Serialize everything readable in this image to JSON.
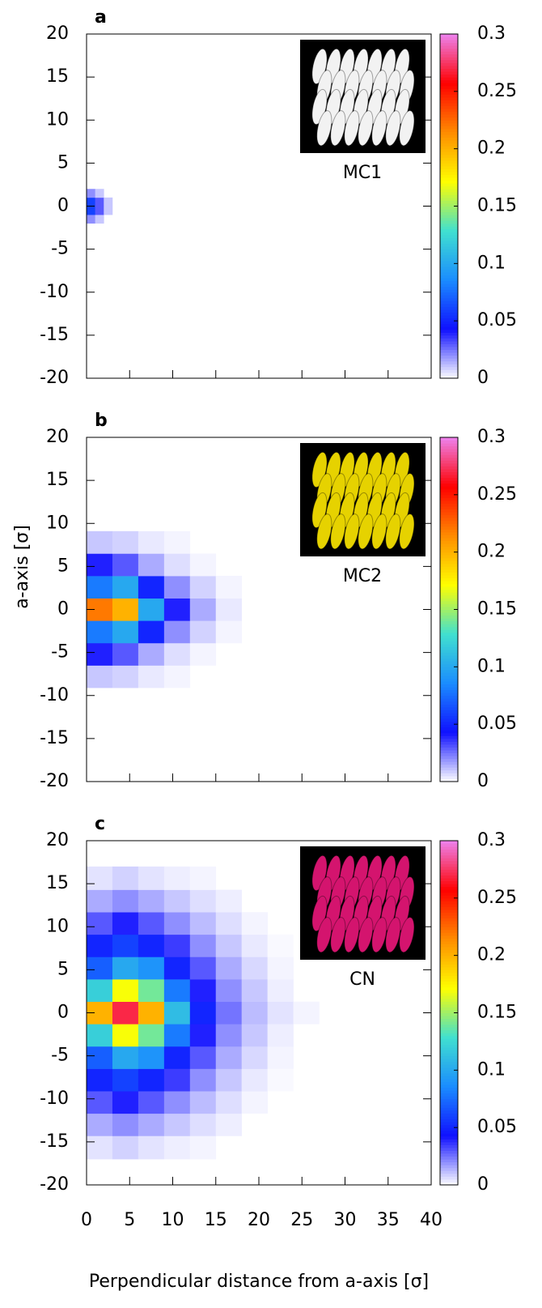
{
  "chart_data": [
    {
      "type": "heatmap",
      "panel": "a",
      "inset_label": "MC1",
      "inset_color": "#f2f2f2",
      "xlim": [
        0,
        40
      ],
      "xticks": [
        0,
        5,
        10,
        15,
        20,
        25,
        30,
        35,
        40
      ],
      "ylim": [
        -20,
        20
      ],
      "yticks": [
        -20,
        -15,
        -10,
        -5,
        0,
        5,
        10,
        15,
        20
      ],
      "x_edges": [
        0,
        1,
        2,
        3
      ],
      "y_edges": [
        -2,
        -1,
        0,
        1,
        2
      ],
      "z": [
        [
          0.02,
          0.01,
          null
        ],
        [
          0.06,
          0.03,
          0.01
        ],
        [
          0.06,
          0.03,
          0.01
        ],
        [
          0.02,
          0.01,
          null
        ]
      ],
      "colorbar": {
        "lim": [
          0,
          0.3
        ],
        "ticks": [
          0,
          0.05,
          0.1,
          0.15,
          0.2,
          0.25,
          0.3
        ],
        "colors": [
          "#ffffff",
          "#1010ff",
          "#1a8cff",
          "#40e0d0",
          "#ffff00",
          "#ff8c00",
          "#ff0000",
          "#ee82ee"
        ]
      }
    },
    {
      "type": "heatmap",
      "panel": "b",
      "inset_label": "MC2",
      "inset_color": "#e6d200",
      "xlim": [
        0,
        40
      ],
      "xticks": [
        0,
        5,
        10,
        15,
        20,
        25,
        30,
        35,
        40
      ],
      "ylim": [
        -20,
        20
      ],
      "yticks": [
        -20,
        -15,
        -10,
        -5,
        0,
        5,
        10,
        15,
        20
      ],
      "x_edges": [
        0,
        3,
        6,
        9,
        12,
        15,
        18
      ],
      "y_edges": [
        -9.1,
        -6.5,
        -3.9,
        -1.3,
        1.3,
        3.9,
        6.5,
        9.1
      ],
      "z": [
        [
          0.01,
          0.008,
          0.004,
          0.002,
          null,
          null
        ],
        [
          0.04,
          0.03,
          0.015,
          0.006,
          0.002,
          null
        ],
        [
          0.08,
          0.1,
          0.05,
          0.02,
          0.008,
          0.002
        ],
        [
          0.22,
          0.2,
          0.1,
          0.04,
          0.015,
          0.004
        ],
        [
          0.08,
          0.1,
          0.05,
          0.02,
          0.008,
          0.002
        ],
        [
          0.04,
          0.03,
          0.015,
          0.006,
          0.002,
          null
        ],
        [
          0.01,
          0.008,
          0.004,
          0.002,
          null,
          null
        ]
      ],
      "colorbar": {
        "lim": [
          0,
          0.3
        ],
        "ticks": [
          0,
          0.05,
          0.1,
          0.15,
          0.2,
          0.25,
          0.3
        ],
        "colors": [
          "#ffffff",
          "#1010ff",
          "#1a8cff",
          "#40e0d0",
          "#ffff00",
          "#ff8c00",
          "#ff0000",
          "#ee82ee"
        ]
      }
    },
    {
      "type": "heatmap",
      "panel": "c",
      "inset_label": "CN",
      "inset_color": "#d4146e",
      "xlim": [
        0,
        40
      ],
      "xticks": [
        0,
        5,
        10,
        15,
        20,
        25,
        30,
        35,
        40
      ],
      "ylim": [
        -20,
        20
      ],
      "yticks": [
        -20,
        -15,
        -10,
        -5,
        0,
        5,
        10,
        15,
        20
      ],
      "x_edges": [
        0,
        3,
        6,
        9,
        12,
        15,
        18,
        21,
        24,
        27
      ],
      "y_edges": [
        -17,
        -14.3,
        -11.7,
        -9.1,
        -6.5,
        -3.9,
        -1.3,
        1.3,
        3.9,
        6.5,
        9.1,
        11.7,
        14.3,
        17
      ],
      "z": [
        [
          0.005,
          0.008,
          0.005,
          0.003,
          0.002,
          null,
          null,
          null,
          null
        ],
        [
          0.015,
          0.02,
          0.015,
          0.01,
          0.006,
          0.003,
          null,
          null,
          null
        ],
        [
          0.03,
          0.04,
          0.03,
          0.02,
          0.012,
          0.006,
          0.002,
          null,
          null
        ],
        [
          0.05,
          0.06,
          0.05,
          0.035,
          0.02,
          0.01,
          0.004,
          0.001,
          null
        ],
        [
          0.07,
          0.1,
          0.09,
          0.05,
          0.03,
          0.015,
          0.007,
          0.002,
          null
        ],
        [
          0.12,
          0.17,
          0.14,
          0.08,
          0.04,
          0.02,
          0.01,
          0.003,
          null
        ],
        [
          0.2,
          0.27,
          0.2,
          0.11,
          0.05,
          0.025,
          0.012,
          0.005,
          0.002
        ],
        [
          0.12,
          0.17,
          0.14,
          0.08,
          0.04,
          0.02,
          0.01,
          0.003,
          null
        ],
        [
          0.07,
          0.1,
          0.09,
          0.05,
          0.03,
          0.015,
          0.007,
          0.002,
          null
        ],
        [
          0.05,
          0.06,
          0.05,
          0.035,
          0.02,
          0.01,
          0.004,
          0.001,
          null
        ],
        [
          0.03,
          0.04,
          0.03,
          0.02,
          0.012,
          0.006,
          0.002,
          null,
          null
        ],
        [
          0.015,
          0.02,
          0.015,
          0.01,
          0.006,
          0.003,
          null,
          null,
          null
        ],
        [
          0.005,
          0.008,
          0.005,
          0.003,
          0.002,
          null,
          null,
          null,
          null
        ]
      ],
      "colorbar": {
        "lim": [
          0,
          0.3
        ],
        "ticks": [
          0,
          0.05,
          0.1,
          0.15,
          0.2,
          0.25,
          0.3
        ],
        "colors": [
          "#ffffff",
          "#1010ff",
          "#1a8cff",
          "#40e0d0",
          "#ffff00",
          "#ff8c00",
          "#ff0000",
          "#ee82ee"
        ]
      }
    }
  ],
  "xlabel": "Perpendicular distance from a-axis [σ]",
  "ylabel": "a-axis [σ]"
}
